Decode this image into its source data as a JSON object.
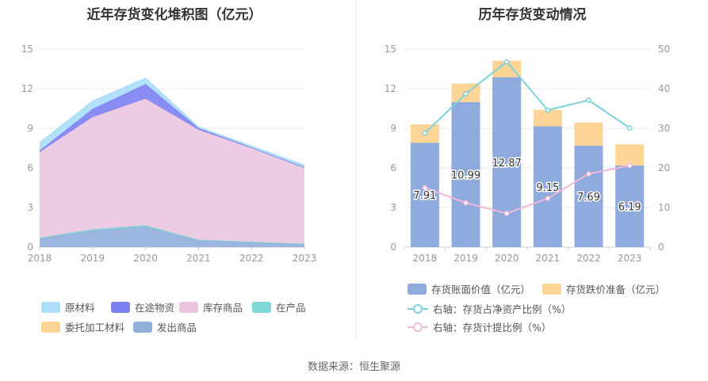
{
  "left_title": "近年存货变化堆积图（亿元）",
  "right_title": "历年存货变动情况",
  "source": "数据来源：恒生聚源",
  "chart_data": [
    {
      "type": "area",
      "title": "近年存货变化堆积图（亿元）",
      "categories": [
        "2018",
        "2019",
        "2020",
        "2021",
        "2022",
        "2023"
      ],
      "yticks": [
        "0",
        "3",
        "6",
        "9",
        "12",
        "15"
      ],
      "ylim": [
        0,
        15
      ],
      "series": [
        {
          "name": "发出商品",
          "color": "#92aedb",
          "values": [
            0.65,
            1.25,
            1.55,
            0.5,
            0.35,
            0.2
          ]
        },
        {
          "name": "委托加工材料",
          "color": "#fdd597",
          "values": [
            0.0,
            0.0,
            0.0,
            0.0,
            0.0,
            0.0
          ]
        },
        {
          "name": "在产品",
          "color": "#7fd6d6",
          "values": [
            0.05,
            0.1,
            0.1,
            0.05,
            0.05,
            0.05
          ]
        },
        {
          "name": "库存商品",
          "color": "#ebc6e0",
          "values": [
            6.5,
            8.5,
            9.6,
            8.35,
            7.1,
            5.75
          ]
        },
        {
          "name": "在途物资",
          "color": "#7b7ff2",
          "values": [
            0.1,
            0.6,
            1.1,
            0.1,
            0.05,
            0.05
          ]
        },
        {
          "name": "原材料",
          "color": "#acdefa",
          "values": [
            0.6,
            0.6,
            0.45,
            0.1,
            0.1,
            0.15
          ]
        }
      ],
      "legend": [
        {
          "name": "原材料",
          "color": "#acdefa"
        },
        {
          "name": "在途物资",
          "color": "#7b7ff2"
        },
        {
          "name": "库存商品",
          "color": "#ebc6e0"
        },
        {
          "name": "在产品",
          "color": "#7fd6d6"
        },
        {
          "name": "委托加工材料",
          "color": "#fdd597"
        },
        {
          "name": "发出商品",
          "color": "#92aedb"
        }
      ],
      "legend_position": "bottom",
      "grid": true
    },
    {
      "type": "bar",
      "title": "历年存货变动情况",
      "categories": [
        "2018",
        "2019",
        "2020",
        "2021",
        "2022",
        "2023"
      ],
      "yticks_left": [
        "0",
        "3",
        "6",
        "9",
        "12",
        "15"
      ],
      "yticks_right": [
        "0",
        "10",
        "20",
        "30",
        "40",
        "50"
      ],
      "ylim_left": [
        0,
        15
      ],
      "ylim_right": [
        0,
        50
      ],
      "series": [
        {
          "name": "存货账面价值（亿元）",
          "color": "#8faadc",
          "values": [
            7.91,
            10.99,
            12.87,
            9.15,
            7.69,
            6.19
          ],
          "labels": [
            "7.91",
            "10.99",
            "12.87",
            "9.15",
            "7.69",
            "6.19"
          ]
        },
        {
          "name": "存货跌价准备（亿元）",
          "color": "#fdd597",
          "values": [
            1.4,
            1.4,
            1.25,
            1.25,
            1.75,
            1.6
          ]
        },
        {
          "name": "右轴：存货占净资产比例（%）",
          "color": "#7fd1d8",
          "axis": "right",
          "values": [
            28.8,
            38.7,
            46.8,
            34.6,
            37.1,
            30.1
          ]
        },
        {
          "name": "右轴：存货计提比例（%）",
          "color": "#efb9d8",
          "axis": "right",
          "values": [
            15.0,
            11.2,
            8.5,
            12.3,
            18.5,
            20.6
          ]
        }
      ],
      "legend_position": "bottom",
      "grid": true
    }
  ]
}
